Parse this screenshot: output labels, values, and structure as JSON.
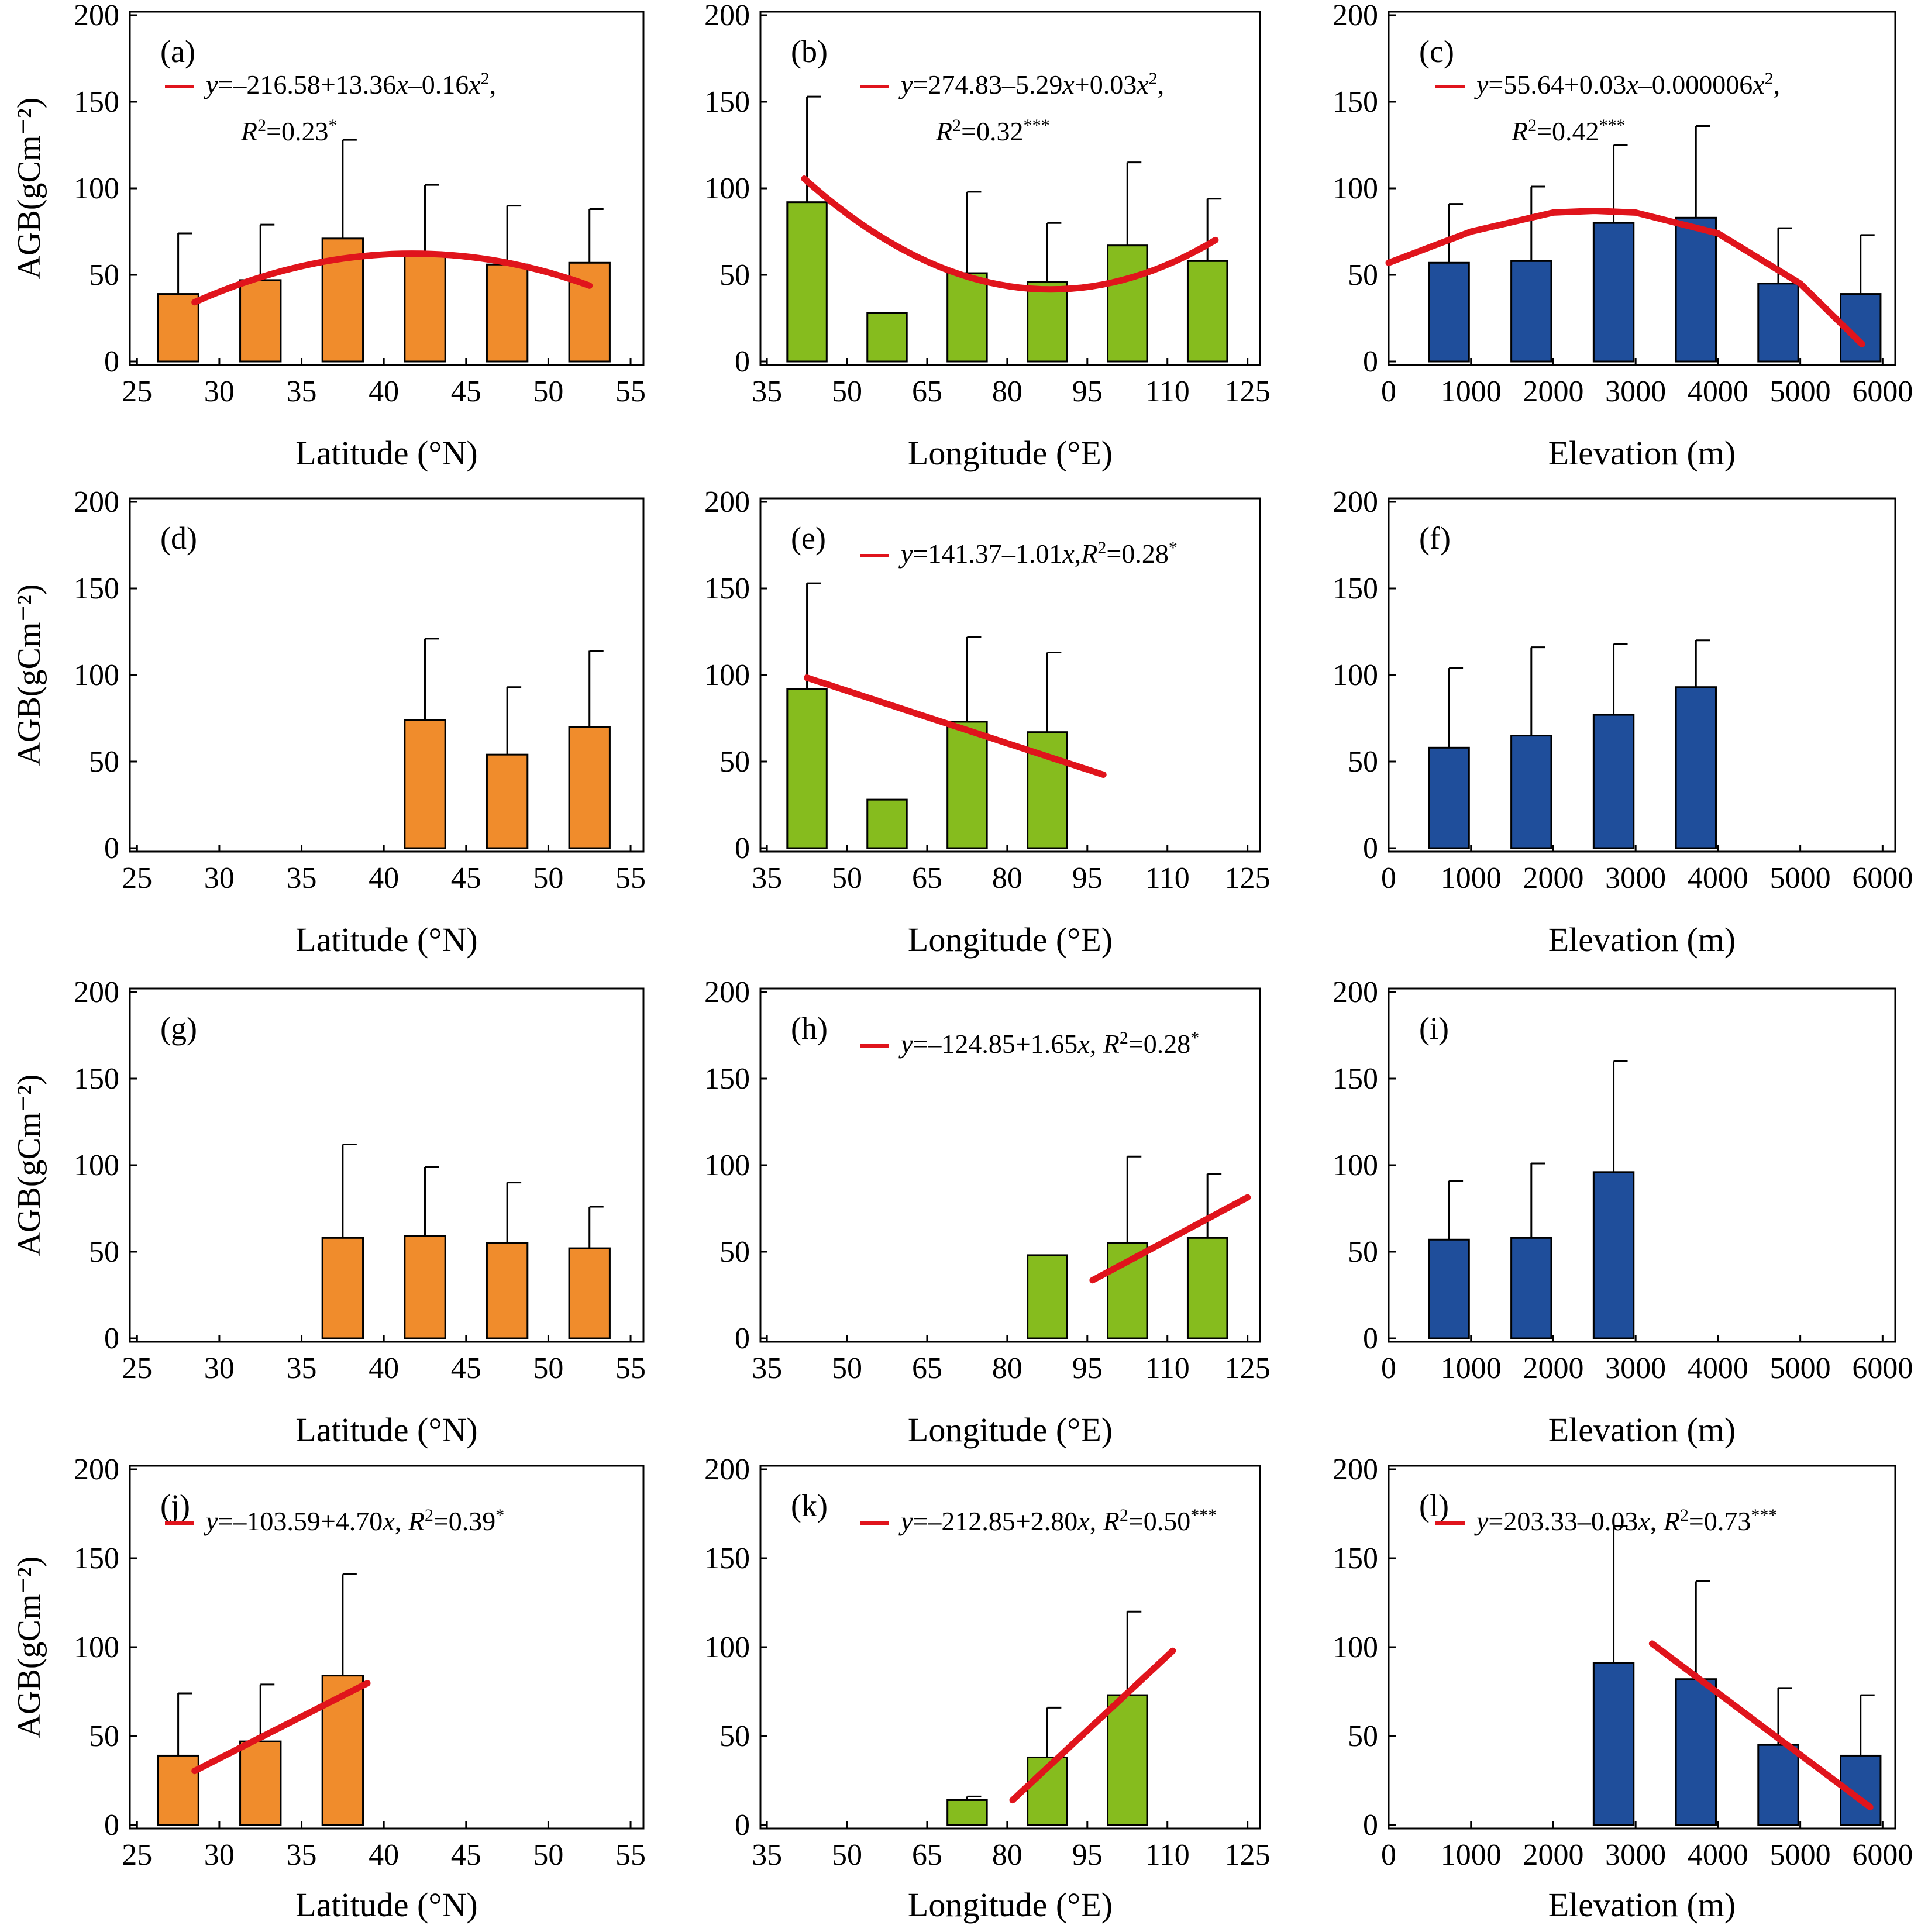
{
  "figure": {
    "colors": {
      "latitude": "#F08C2C",
      "longitude": "#86BC1E",
      "elevation": "#1F4E9B",
      "fit": "#E0141C"
    }
  },
  "chart_data": [
    {
      "panel": "(a)",
      "type": "bar",
      "axis": "lat",
      "y_label": "AGB(gCm⁻²)",
      "x_label": "Latitude (°N)",
      "x_ticks": [
        "25",
        "30",
        "35",
        "40",
        "45",
        "50",
        "55"
      ],
      "y_ticks": [
        "0",
        "50",
        "100",
        "150",
        "200"
      ],
      "x_range": [
        25,
        55
      ],
      "y_range": [
        0,
        200
      ],
      "bars": [
        {
          "x": 27.5,
          "value": 39,
          "error": 35
        },
        {
          "x": 32.5,
          "value": 47,
          "error": 32
        },
        {
          "x": 37.5,
          "value": 71,
          "error": 57
        },
        {
          "x": 42.5,
          "value": 61,
          "error": 41
        },
        {
          "x": 47.5,
          "value": 56,
          "error": 34
        },
        {
          "x": 52.5,
          "value": 57,
          "error": 31
        }
      ],
      "fit": {
        "kind": "poly",
        "coef": [
          -216.58,
          13.36,
          -0.16
        ],
        "x_from": 28.5,
        "x_to": 52.5
      },
      "eq_parts": [
        {
          "t": "y",
          "i": true
        },
        {
          "t": "=–216.58+13.36"
        },
        {
          "t": "x",
          "i": true
        },
        {
          "t": "–0.16"
        },
        {
          "t": "x",
          "i": true
        },
        {
          "t": "2",
          "sup": true
        },
        {
          "t": ","
        }
      ],
      "r2_parts": [
        {
          "t": "R",
          "i": true
        },
        {
          "t": "2",
          "sup": true
        },
        {
          "t": "=0.23"
        },
        {
          "t": "*",
          "sup": true
        }
      ]
    },
    {
      "panel": "(b)",
      "type": "bar",
      "axis": "lon",
      "x_label": "Longitude (°E)",
      "x_ticks": [
        "35",
        "50",
        "65",
        "80",
        "95",
        "110",
        "125"
      ],
      "y_ticks": [
        "0",
        "50",
        "100",
        "150",
        "200"
      ],
      "x_range": [
        35,
        125
      ],
      "y_range": [
        0,
        200
      ],
      "bars": [
        {
          "x": 42.5,
          "value": 92,
          "error": 61
        },
        {
          "x": 57.5,
          "value": 28,
          "error": 0
        },
        {
          "x": 72.5,
          "value": 51,
          "error": 47
        },
        {
          "x": 87.5,
          "value": 46,
          "error": 34
        },
        {
          "x": 102.5,
          "value": 67,
          "error": 48
        },
        {
          "x": 117.5,
          "value": 58,
          "error": 36
        }
      ],
      "fit": {
        "kind": "poly",
        "coef": [
          274.83,
          -5.29,
          0.03
        ],
        "x_from": 42,
        "x_to": 119
      },
      "eq_parts": [
        {
          "t": "y",
          "i": true
        },
        {
          "t": "=274.83–5.29"
        },
        {
          "t": "x",
          "i": true
        },
        {
          "t": "+0.03"
        },
        {
          "t": "x",
          "i": true
        },
        {
          "t": "2",
          "sup": true
        },
        {
          "t": ","
        }
      ],
      "r2_parts": [
        {
          "t": "R",
          "i": true
        },
        {
          "t": "2",
          "sup": true
        },
        {
          "t": "=0.32"
        },
        {
          "t": "***",
          "sup": true
        }
      ]
    },
    {
      "panel": "(c)",
      "type": "bar",
      "axis": "elev",
      "x_label": "Elevation (m)",
      "x_ticks": [
        "0",
        "1000",
        "2000",
        "3000",
        "4000",
        "5000",
        "6000"
      ],
      "y_ticks": [
        "0",
        "50",
        "100",
        "150",
        "200"
      ],
      "x_range": [
        0,
        6000
      ],
      "y_range": [
        0,
        200
      ],
      "bars": [
        {
          "x": 1000,
          "value": 57,
          "error": 34
        },
        {
          "x": 2000,
          "value": 58,
          "error": 43
        },
        {
          "x": 3000,
          "value": 80,
          "error": 45
        },
        {
          "x": 4000,
          "value": 83,
          "error": 53
        },
        {
          "x": 5000,
          "value": 45,
          "error": 32
        },
        {
          "x": 6000,
          "value": 39,
          "error": 34
        }
      ],
      "fit": {
        "kind": "custom",
        "points": [
          [
            0,
            57
          ],
          [
            1000,
            75
          ],
          [
            2000,
            86
          ],
          [
            2500,
            87
          ],
          [
            3000,
            86
          ],
          [
            4000,
            74
          ],
          [
            5000,
            45
          ],
          [
            5750,
            10
          ]
        ]
      },
      "eq_parts": [
        {
          "t": "y",
          "i": true
        },
        {
          "t": "=55.64+0.03"
        },
        {
          "t": "x",
          "i": true
        },
        {
          "t": "–0.000006"
        },
        {
          "t": "x",
          "i": true
        },
        {
          "t": "2",
          "sup": true
        },
        {
          "t": ","
        }
      ],
      "r2_parts": [
        {
          "t": "R",
          "i": true
        },
        {
          "t": "2",
          "sup": true
        },
        {
          "t": "=0.42"
        },
        {
          "t": "***",
          "sup": true
        }
      ]
    },
    {
      "panel": "(d)",
      "type": "bar",
      "axis": "lat",
      "y_label": "AGB(gCm⁻²)",
      "x_label": "Latitude (°N)",
      "x_ticks": [
        "25",
        "30",
        "35",
        "40",
        "45",
        "50",
        "55"
      ],
      "y_ticks": [
        "0",
        "50",
        "100",
        "150",
        "200"
      ],
      "x_range": [
        25,
        55
      ],
      "y_range": [
        0,
        200
      ],
      "bars": [
        {
          "x": 42.5,
          "value": 74,
          "error": 47
        },
        {
          "x": 47.5,
          "value": 54,
          "error": 39
        },
        {
          "x": 52.5,
          "value": 70,
          "error": 44
        }
      ]
    },
    {
      "panel": "(e)",
      "type": "bar",
      "axis": "lon",
      "x_label": "Longitude (°E)",
      "x_ticks": [
        "35",
        "50",
        "65",
        "80",
        "95",
        "110",
        "125"
      ],
      "y_ticks": [
        "0",
        "50",
        "100",
        "150",
        "200"
      ],
      "x_range": [
        35,
        125
      ],
      "y_range": [
        0,
        200
      ],
      "bars": [
        {
          "x": 42.5,
          "value": 92,
          "error": 61
        },
        {
          "x": 57.5,
          "value": 28,
          "error": 0
        },
        {
          "x": 72.5,
          "value": 73,
          "error": 49
        },
        {
          "x": 87.5,
          "value": 67,
          "error": 46
        }
      ],
      "fit": {
        "kind": "poly",
        "coef": [
          141.37,
          -1.01
        ],
        "x_from": 42.5,
        "x_to": 98
      },
      "eq_parts": [
        {
          "t": "y",
          "i": true
        },
        {
          "t": "=141.37–1.01"
        },
        {
          "t": "x",
          "i": true
        },
        {
          "t": ","
        },
        {
          "t": "R",
          "i": true
        },
        {
          "t": "2",
          "sup": true
        },
        {
          "t": "=0.28"
        },
        {
          "t": "*",
          "sup": true
        }
      ]
    },
    {
      "panel": "(f)",
      "type": "bar",
      "axis": "elev",
      "x_label": "Elevation (m)",
      "x_ticks": [
        "0",
        "1000",
        "2000",
        "3000",
        "4000",
        "5000",
        "6000"
      ],
      "y_ticks": [
        "0",
        "50",
        "100",
        "150",
        "200"
      ],
      "x_range": [
        0,
        6000
      ],
      "y_range": [
        0,
        200
      ],
      "bars": [
        {
          "x": 1000,
          "value": 58,
          "error": 46
        },
        {
          "x": 2000,
          "value": 65,
          "error": 51
        },
        {
          "x": 3000,
          "value": 77,
          "error": 41
        },
        {
          "x": 4000,
          "value": 93,
          "error": 27
        }
      ]
    },
    {
      "panel": "(g)",
      "type": "bar",
      "axis": "lat",
      "y_label": "AGB(gCm⁻²)",
      "x_label": "Latitude (°N)",
      "x_ticks": [
        "25",
        "30",
        "35",
        "40",
        "45",
        "50",
        "55"
      ],
      "y_ticks": [
        "0",
        "50",
        "100",
        "150",
        "200"
      ],
      "x_range": [
        25,
        55
      ],
      "y_range": [
        0,
        200
      ],
      "bars": [
        {
          "x": 37.5,
          "value": 58,
          "error": 54
        },
        {
          "x": 42.5,
          "value": 59,
          "error": 40
        },
        {
          "x": 47.5,
          "value": 55,
          "error": 35
        },
        {
          "x": 52.5,
          "value": 52,
          "error": 24
        }
      ]
    },
    {
      "panel": "(h)",
      "type": "bar",
      "axis": "lon",
      "x_label": "Longitude (°E)",
      "x_ticks": [
        "35",
        "50",
        "65",
        "80",
        "95",
        "110",
        "125"
      ],
      "y_ticks": [
        "0",
        "50",
        "100",
        "150",
        "200"
      ],
      "x_range": [
        35,
        125
      ],
      "y_range": [
        0,
        200
      ],
      "bars": [
        {
          "x": 87.5,
          "value": 48,
          "error": 0
        },
        {
          "x": 102.5,
          "value": 55,
          "error": 50
        },
        {
          "x": 117.5,
          "value": 58,
          "error": 37
        }
      ],
      "fit": {
        "kind": "poly",
        "coef": [
          -124.85,
          1.65
        ],
        "x_from": 96,
        "x_to": 125
      },
      "eq_parts": [
        {
          "t": "y",
          "i": true
        },
        {
          "t": "=–124.85+1.65"
        },
        {
          "t": "x",
          "i": true
        },
        {
          "t": ", "
        },
        {
          "t": "R",
          "i": true
        },
        {
          "t": "2",
          "sup": true
        },
        {
          "t": "=0.28"
        },
        {
          "t": "*",
          "sup": true
        }
      ]
    },
    {
      "panel": "(i)",
      "type": "bar",
      "axis": "elev",
      "x_label": "Elevation (m)",
      "x_ticks": [
        "0",
        "1000",
        "2000",
        "3000",
        "4000",
        "5000",
        "6000"
      ],
      "y_ticks": [
        "0",
        "50",
        "100",
        "150",
        "200"
      ],
      "x_range": [
        0,
        6000
      ],
      "y_range": [
        0,
        200
      ],
      "bars": [
        {
          "x": 1000,
          "value": 57,
          "error": 34
        },
        {
          "x": 2000,
          "value": 58,
          "error": 43
        },
        {
          "x": 3000,
          "value": 96,
          "error": 64
        }
      ]
    },
    {
      "panel": "(j)",
      "type": "bar",
      "axis": "lat",
      "y_label": "AGB(gCm⁻²)",
      "x_label": "Latitude (°N)",
      "x_ticks": [
        "25",
        "30",
        "35",
        "40",
        "45",
        "50",
        "55"
      ],
      "y_ticks": [
        "0",
        "50",
        "100",
        "150",
        "200"
      ],
      "x_range": [
        25,
        55
      ],
      "y_range": [
        0,
        200
      ],
      "bars": [
        {
          "x": 27.5,
          "value": 39,
          "error": 35
        },
        {
          "x": 32.5,
          "value": 47,
          "error": 32
        },
        {
          "x": 37.5,
          "value": 84,
          "error": 57
        }
      ],
      "fit": {
        "kind": "poly",
        "coef": [
          -103.59,
          4.7
        ],
        "x_from": 28.5,
        "x_to": 39
      },
      "eq_parts": [
        {
          "t": "y",
          "i": true
        },
        {
          "t": "=–103.59+4.70"
        },
        {
          "t": "x",
          "i": true
        },
        {
          "t": ", "
        },
        {
          "t": "R",
          "i": true
        },
        {
          "t": "2",
          "sup": true
        },
        {
          "t": "=0.39"
        },
        {
          "t": "*",
          "sup": true
        }
      ]
    },
    {
      "panel": "(k)",
      "type": "bar",
      "axis": "lon",
      "x_label": "Longitude (°E)",
      "x_ticks": [
        "35",
        "50",
        "65",
        "80",
        "95",
        "110",
        "125"
      ],
      "y_ticks": [
        "0",
        "50",
        "100",
        "150",
        "200"
      ],
      "x_range": [
        35,
        125
      ],
      "y_range": [
        0,
        200
      ],
      "bars": [
        {
          "x": 72.5,
          "value": 14,
          "error": 2
        },
        {
          "x": 87.5,
          "value": 38,
          "error": 28
        },
        {
          "x": 102.5,
          "value": 73,
          "error": 47
        }
      ],
      "fit": {
        "kind": "poly",
        "coef": [
          -212.85,
          2.8
        ],
        "x_from": 81,
        "x_to": 111
      },
      "eq_parts": [
        {
          "t": "y",
          "i": true
        },
        {
          "t": "=–212.85+2.80"
        },
        {
          "t": "x",
          "i": true
        },
        {
          "t": ", "
        },
        {
          "t": "R",
          "i": true
        },
        {
          "t": "2",
          "sup": true
        },
        {
          "t": "=0.50"
        },
        {
          "t": "***",
          "sup": true
        }
      ]
    },
    {
      "panel": "(l)",
      "type": "bar",
      "axis": "elev",
      "x_label": "Elevation (m)",
      "x_ticks": [
        "0",
        "1000",
        "2000",
        "3000",
        "4000",
        "5000",
        "6000"
      ],
      "y_ticks": [
        "0",
        "50",
        "100",
        "150",
        "200"
      ],
      "x_range": [
        0,
        6000
      ],
      "y_range": [
        0,
        200
      ],
      "bars": [
        {
          "x": 3000,
          "value": 91,
          "error": 77
        },
        {
          "x": 4000,
          "value": 82,
          "error": 55
        },
        {
          "x": 5000,
          "value": 45,
          "error": 32
        },
        {
          "x": 6000,
          "value": 39,
          "error": 34
        }
      ],
      "fit": {
        "kind": "custom",
        "points": [
          [
            3200,
            102
          ],
          [
            5850,
            10
          ]
        ]
      },
      "eq_parts": [
        {
          "t": "y",
          "i": true
        },
        {
          "t": "=203.33–0.03"
        },
        {
          "t": "x",
          "i": true
        },
        {
          "t": ", "
        },
        {
          "t": "R",
          "i": true
        },
        {
          "t": "2",
          "sup": true
        },
        {
          "t": "=0.73"
        },
        {
          "t": "***",
          "sup": true
        }
      ]
    }
  ]
}
